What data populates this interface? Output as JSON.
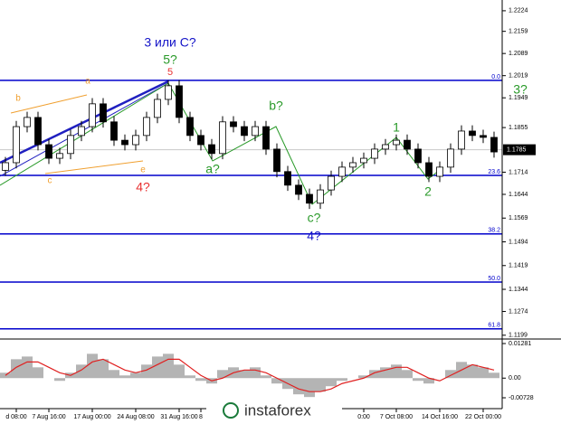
{
  "chart_data": {
    "type": "candlestick",
    "categories": [
      null,
      "d 08:00",
      null,
      null,
      "7 Aug 16:00",
      null,
      null,
      null,
      "17 Aug 00:00",
      null,
      null,
      null,
      "24 Aug 08:00",
      null,
      null,
      null,
      "31 Aug 16:00",
      null,
      "8",
      null,
      null,
      null,
      null,
      null,
      null,
      null,
      null,
      null,
      null,
      null,
      null,
      null,
      null,
      "0:00",
      null,
      null,
      "7 Oct 08:00",
      null,
      null,
      null,
      "14 Oct 16:00",
      null,
      null,
      null,
      "22 Oct 00:00",
      null
    ],
    "open": [
      1.172,
      1.1744,
      1.1858,
      1.1887,
      1.1801,
      1.1758,
      1.1773,
      1.183,
      1.1858,
      1.193,
      1.1873,
      1.1815,
      1.1801,
      1.183,
      1.1887,
      1.1944,
      1.1987,
      1.1887,
      1.183,
      1.1801,
      1.1773,
      1.1873,
      1.1858,
      1.183,
      1.1858,
      1.1787,
      1.1716,
      1.1673,
      1.1644,
      1.1616,
      1.1658,
      1.1701,
      1.173,
      1.1744,
      1.1758,
      1.1787,
      1.1801,
      1.1815,
      1.1787,
      1.1744,
      1.1701,
      1.173,
      1.1787,
      1.1844,
      1.183,
      1.1824
    ],
    "high": [
      1.1762,
      1.1876,
      1.1905,
      1.1905,
      1.1819,
      1.1791,
      1.1848,
      1.1876,
      1.1948,
      1.1948,
      1.1891,
      1.1833,
      1.1848,
      1.1905,
      1.1962,
      1.2005,
      1.2005,
      1.1905,
      1.1848,
      1.1819,
      1.1891,
      1.1891,
      1.1876,
      1.1876,
      1.1876,
      1.1805,
      1.1734,
      1.1691,
      1.1662,
      1.1676,
      1.1719,
      1.1748,
      1.1762,
      1.1776,
      1.1805,
      1.1819,
      1.1833,
      1.1833,
      1.1805,
      1.1762,
      1.1748,
      1.1805,
      1.1862,
      1.1862,
      1.1848,
      1.1842
    ],
    "low": [
      1.1702,
      1.1726,
      1.184,
      1.1783,
      1.174,
      1.174,
      1.1755,
      1.1812,
      1.184,
      1.1855,
      1.1797,
      1.1783,
      1.1783,
      1.1812,
      1.1869,
      1.1926,
      1.1869,
      1.1812,
      1.1783,
      1.1755,
      1.1755,
      1.184,
      1.1812,
      1.1812,
      1.1769,
      1.1698,
      1.1655,
      1.1626,
      1.1598,
      1.1598,
      1.164,
      1.1683,
      1.1712,
      1.1726,
      1.174,
      1.1769,
      1.1783,
      1.1769,
      1.1726,
      1.1683,
      1.1683,
      1.1712,
      1.1769,
      1.1812,
      1.1806,
      1.176
    ],
    "close": [
      1.1744,
      1.1858,
      1.1887,
      1.1801,
      1.1758,
      1.1773,
      1.183,
      1.1858,
      1.193,
      1.1873,
      1.1815,
      1.1801,
      1.183,
      1.1887,
      1.1944,
      1.1987,
      1.1887,
      1.183,
      1.1801,
      1.1773,
      1.1873,
      1.1858,
      1.183,
      1.1858,
      1.1787,
      1.1716,
      1.1673,
      1.1644,
      1.1616,
      1.1658,
      1.1701,
      1.173,
      1.1744,
      1.1758,
      1.1787,
      1.1801,
      1.1815,
      1.1787,
      1.1744,
      1.1701,
      1.173,
      1.1787,
      1.1844,
      1.183,
      1.1824,
      1.1778
    ],
    "up_color": "#ffffff",
    "down_color": "#000000",
    "ylim": [
      1.1187,
      1.2258
    ],
    "yticks": [
      1.2224,
      1.2159,
      1.2089,
      1.2019,
      1.1949,
      1.1855,
      1.1714,
      1.1644,
      1.1569,
      1.1494,
      1.1419,
      1.1344,
      1.1274,
      1.1199
    ],
    "current_price": 1.1785,
    "level_color": "#0000cc",
    "levels": [
      {
        "value": 1.2004,
        "label": "0.0"
      },
      {
        "value": 1.1704,
        "label": "23.6"
      },
      {
        "value": 1.1519,
        "label": "38.2"
      },
      {
        "value": 1.1367,
        "label": "50.0"
      },
      {
        "value": 1.1219,
        "label": "61.8"
      }
    ],
    "annotations": [
      "3 или C?",
      "5?",
      "5",
      "b",
      "a",
      "c",
      "e",
      "4?",
      "a?",
      "b?",
      "c?",
      "4?",
      "1",
      "2",
      "3?"
    ],
    "watermark": "instaforex",
    "indicator": {
      "ylim": [
        -0.00728,
        0.01281
      ],
      "yticks": [
        0.01281,
        {
          "value": 0,
          "label": "0.00"
        },
        -0.00728
      ],
      "histogram_color": "#b4b4b4",
      "signal_color": "#e02020",
      "histogram": [
        0.002,
        0.007,
        0.008,
        0.004,
        0.0,
        -0.001,
        0.002,
        0.005,
        0.009,
        0.007,
        0.003,
        0.001,
        0.002,
        0.005,
        0.008,
        0.009,
        0.005,
        0.001,
        -0.001,
        -0.002,
        0.003,
        0.004,
        0.003,
        0.004,
        0.001,
        -0.002,
        -0.004,
        -0.006,
        -0.007,
        -0.005,
        -0.003,
        -0.001,
        0.0,
        0.001,
        0.003,
        0.004,
        0.005,
        0.003,
        -0.001,
        -0.002,
        0.0,
        0.003,
        0.006,
        0.005,
        0.004,
        0.002
      ],
      "signal": [
        0.001,
        0.004,
        0.006,
        0.006,
        0.004,
        0.002,
        0.001,
        0.003,
        0.006,
        0.007,
        0.005,
        0.003,
        0.002,
        0.003,
        0.005,
        0.007,
        0.007,
        0.004,
        0.001,
        -0.001,
        0.0,
        0.002,
        0.003,
        0.003,
        0.002,
        0.0,
        -0.002,
        -0.004,
        -0.005,
        -0.005,
        -0.004,
        -0.002,
        -0.001,
        0.0,
        0.002,
        0.003,
        0.004,
        0.004,
        0.002,
        0.0,
        -0.001,
        0.001,
        0.003,
        0.005,
        0.004,
        0.003
      ]
    }
  }
}
